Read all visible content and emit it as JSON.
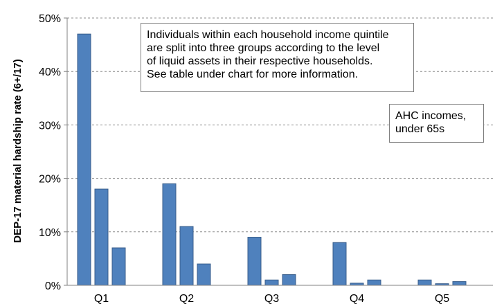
{
  "chart_data": {
    "type": "bar",
    "ylabel": "DEP-17 material hardship rate (6+/17)",
    "categories": [
      "Q1",
      "Q2",
      "Q3",
      "Q4",
      "Q5"
    ],
    "series": [
      {
        "values": [
          47,
          19,
          9,
          8,
          1
        ]
      },
      {
        "values": [
          18,
          11,
          1,
          0.4,
          0.3
        ]
      },
      {
        "values": [
          7,
          4,
          2,
          1,
          0.7
        ]
      }
    ],
    "ylim": [
      0,
      50
    ],
    "yticks": [
      0,
      10,
      20,
      30,
      40,
      50
    ],
    "ytick_labels": [
      "0%",
      "10%",
      "20%",
      "30%",
      "40%",
      "50%"
    ],
    "grid": "dashed horizontal",
    "bar_color": "#4f81bd",
    "bar_edge_color": "#385d8a",
    "annotations": [
      {
        "lines": [
          "Individuals within each household income quintile",
          "are split into three groups according to the level",
          "of liquid assets in their respective households.",
          "See table under chart for more information."
        ]
      },
      {
        "lines": [
          "AHC incomes,",
          "under 65s"
        ]
      }
    ]
  }
}
